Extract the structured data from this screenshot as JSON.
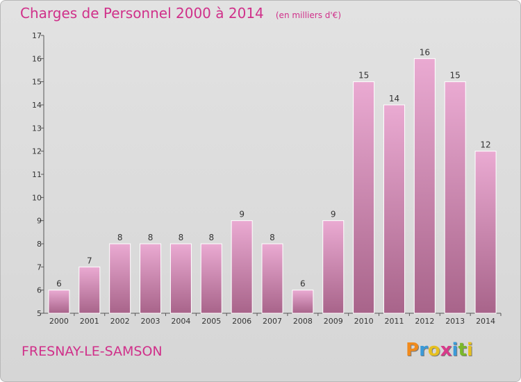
{
  "chart_data": {
    "type": "bar",
    "title": "Charges de Personnel 2000 à 2014",
    "subtitle": "(en milliers d'€)",
    "categories": [
      "2000",
      "2001",
      "2002",
      "2003",
      "2004",
      "2005",
      "2006",
      "2007",
      "2008",
      "2009",
      "2010",
      "2011",
      "2012",
      "2013",
      "2014"
    ],
    "values": [
      6,
      7,
      8,
      8,
      8,
      8,
      9,
      8,
      6,
      9,
      15,
      14,
      16,
      15,
      12
    ],
    "ylim": [
      5,
      17
    ],
    "yticks": [
      5,
      6,
      7,
      8,
      9,
      10,
      11,
      12,
      13,
      14,
      15,
      16,
      17
    ],
    "grid": false,
    "colors": {
      "bar_top": "#eaaad2",
      "bar_bottom": "#a8648a",
      "title": "#d0308a"
    }
  },
  "footer": {
    "commune": "FRESNAY-LE-SAMSON",
    "brand_letters": [
      "P",
      "r",
      "o",
      "x",
      "i",
      "t",
      "i"
    ],
    "brand_colors": [
      "#f08a1c",
      "#3a9ad8",
      "#e6c020",
      "#d83a8a",
      "#3a9ad8",
      "#7ab82a",
      "#e6c020"
    ]
  }
}
